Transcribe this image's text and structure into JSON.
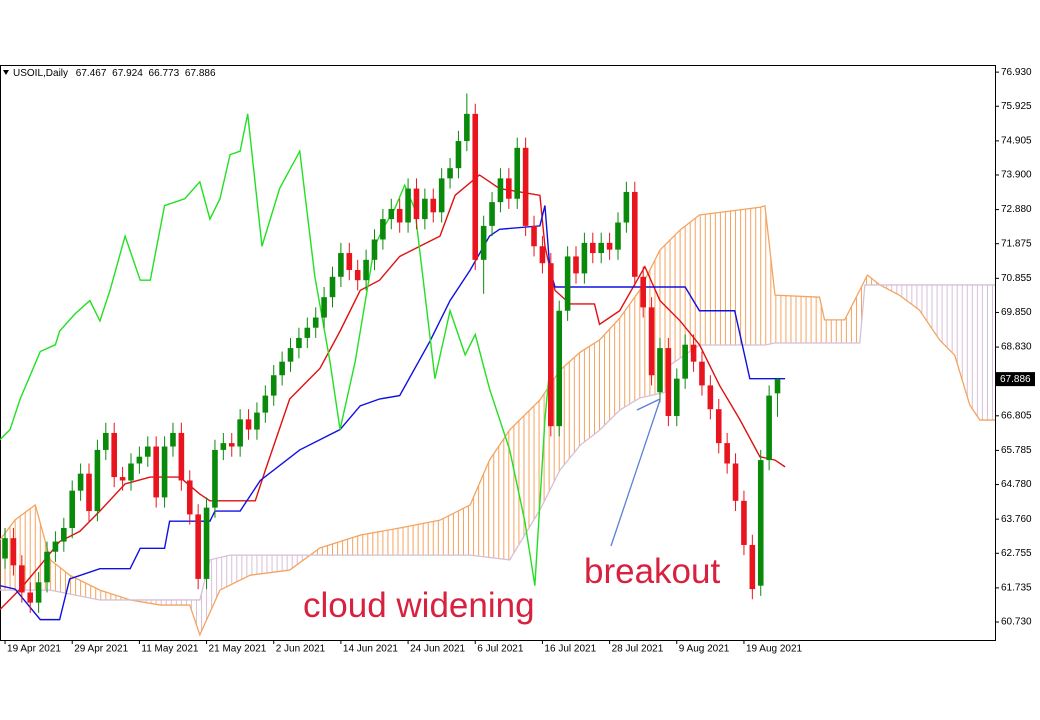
{
  "chart_data": {
    "type": "candlestick",
    "title": "USOIL,Daily",
    "up_color": "#0a8a0a",
    "down_color": "#e8141e",
    "grid": false,
    "xlim": [
      -0.6,
      117.9
    ],
    "xticks": [
      {
        "value": 0,
        "label": "19 Apr 2021"
      },
      {
        "value": 8,
        "label": "29 Apr 2021"
      },
      {
        "value": 16,
        "label": "11 May 2021"
      },
      {
        "value": 24,
        "label": "21 May 2021"
      },
      {
        "value": 32,
        "label": "2 Jun 2021"
      },
      {
        "value": 40,
        "label": "14 Jun 2021"
      },
      {
        "value": 48,
        "label": "24 Jun 2021"
      },
      {
        "value": 56,
        "label": "6 Jul 2021"
      },
      {
        "value": 64,
        "label": "16 Jul 2021"
      },
      {
        "value": 72,
        "label": "28 Jul 2021"
      },
      {
        "value": 80,
        "label": "9 Aug 2021"
      },
      {
        "value": 88,
        "label": "19 Aug 2021"
      }
    ],
    "ylim": [
      60.2,
      77.14
    ],
    "yticks": [
      {
        "value": 76.93,
        "label": "76.930"
      },
      75.925,
      74.905,
      {
        "value": 73.9,
        "label": "73.900"
      },
      {
        "value": 72.88,
        "label": "72.880"
      },
      71.875,
      70.855,
      {
        "value": 69.85,
        "label": "69.850"
      },
      {
        "value": 68.83,
        "label": "68.830"
      },
      66.805,
      65.785,
      {
        "value": 64.78,
        "label": "64.780"
      },
      {
        "value": 63.76,
        "label": "63.760"
      },
      62.755,
      61.735,
      {
        "value": 60.73,
        "label": "60.730"
      }
    ],
    "open": [
      62.6,
      63.2,
      62.4,
      61.6,
      61.3,
      61.9,
      62.8,
      63.1,
      63.5,
      64.6,
      65.1,
      64.0,
      65.8,
      66.3,
      65.0,
      64.9,
      65.4,
      65.6,
      65.9,
      64.4,
      65.9,
      66.3,
      64.9,
      63.9,
      62.0,
      64.1,
      65.8,
      66.0,
      65.9,
      66.7,
      66.4,
      66.9,
      67.4,
      68.0,
      68.4,
      68.8,
      69.1,
      69.4,
      69.7,
      70.3,
      70.9,
      71.6,
      71.1,
      70.8,
      71.4,
      72.0,
      72.6,
      72.9,
      72.5,
      73.5,
      72.6,
      73.2,
      72.8,
      73.8,
      74.1,
      74.9,
      75.7,
      71.4,
      72.4,
      73.1,
      73.8,
      73.2,
      74.7,
      72.4,
      71.8,
      71.3,
      66.5,
      69.9,
      71.5,
      71.0,
      71.9,
      71.6,
      71.9,
      71.7,
      72.5,
      73.4,
      70.9,
      70.0,
      67.5,
      68.8,
      66.8,
      67.9,
      68.9,
      68.4,
      67.7,
      67.0,
      66.0,
      65.4,
      64.3,
      63.0,
      61.8,
      65.5,
      67.467
    ],
    "high": [
      63.5,
      63.5,
      62.7,
      61.9,
      62.2,
      63.1,
      63.4,
      63.8,
      64.9,
      65.4,
      65.4,
      66.1,
      66.6,
      66.6,
      65.3,
      65.7,
      65.9,
      66.2,
      66.2,
      66.2,
      66.6,
      66.6,
      65.2,
      64.2,
      64.4,
      66.1,
      66.3,
      66.3,
      67.0,
      67.0,
      67.2,
      67.7,
      68.3,
      68.7,
      69.1,
      69.4,
      69.7,
      70.0,
      70.6,
      71.2,
      71.9,
      71.9,
      71.4,
      71.7,
      72.3,
      72.9,
      73.2,
      73.2,
      73.8,
      73.8,
      73.5,
      73.5,
      74.1,
      74.4,
      75.2,
      76.3,
      76.0,
      72.7,
      73.4,
      74.1,
      74.1,
      75.0,
      75.0,
      72.7,
      72.1,
      71.6,
      70.2,
      71.8,
      71.8,
      72.2,
      72.2,
      72.2,
      72.2,
      72.8,
      73.7,
      73.7,
      71.2,
      70.3,
      69.1,
      69.1,
      68.2,
      69.2,
      69.2,
      68.7,
      68.0,
      67.3,
      66.3,
      65.7,
      64.6,
      63.3,
      65.8,
      67.7,
      67.924
    ],
    "low": [
      62.3,
      62.1,
      61.3,
      61.0,
      61.0,
      61.6,
      62.5,
      62.8,
      63.2,
      64.3,
      63.7,
      63.7,
      65.5,
      64.7,
      64.6,
      64.6,
      65.1,
      65.3,
      64.1,
      64.1,
      65.6,
      64.6,
      63.6,
      61.7,
      61.7,
      63.8,
      65.5,
      65.6,
      65.6,
      66.1,
      66.1,
      66.6,
      67.1,
      67.7,
      68.1,
      68.5,
      68.8,
      69.1,
      69.4,
      70.0,
      70.6,
      70.8,
      70.5,
      70.5,
      71.1,
      71.7,
      72.3,
      72.2,
      72.2,
      72.3,
      72.3,
      72.5,
      72.5,
      73.5,
      73.8,
      74.6,
      71.1,
      70.4,
      72.1,
      72.8,
      72.9,
      72.9,
      72.1,
      71.5,
      71.0,
      66.2,
      66.2,
      69.6,
      70.7,
      70.7,
      71.3,
      71.3,
      71.4,
      71.4,
      72.2,
      70.6,
      69.7,
      67.7,
      67.2,
      66.5,
      66.5,
      67.6,
      68.1,
      67.4,
      66.7,
      65.7,
      65.1,
      64.0,
      62.7,
      61.4,
      61.5,
      65.2,
      66.773
    ],
    "close": [
      63.2,
      62.4,
      61.6,
      61.3,
      61.9,
      62.8,
      63.1,
      63.5,
      64.6,
      65.1,
      64.0,
      65.8,
      66.3,
      65.0,
      64.9,
      65.4,
      65.6,
      65.9,
      64.4,
      65.9,
      66.3,
      64.9,
      63.9,
      62.0,
      64.1,
      65.8,
      66.0,
      65.9,
      66.7,
      66.4,
      66.9,
      67.4,
      68.0,
      68.4,
      68.8,
      69.1,
      69.4,
      69.7,
      70.3,
      70.9,
      71.6,
      71.1,
      70.8,
      71.4,
      72.0,
      72.6,
      72.9,
      72.5,
      73.5,
      72.6,
      73.2,
      72.8,
      73.8,
      74.1,
      74.9,
      75.7,
      71.4,
      72.4,
      73.1,
      73.8,
      73.2,
      74.7,
      72.4,
      71.8,
      71.3,
      66.5,
      69.9,
      71.5,
      71.0,
      71.9,
      71.6,
      71.9,
      71.7,
      72.5,
      73.4,
      70.9,
      70.0,
      68.0,
      68.8,
      66.8,
      67.9,
      68.9,
      68.4,
      67.7,
      67.0,
      66.0,
      65.4,
      64.3,
      63.0,
      61.7,
      65.5,
      67.4,
      67.886
    ],
    "lines": [
      {
        "color": "#e01010",
        "x": [
          -0.6,
          1.8,
          4.2,
          6.5,
          8.9,
          11.3,
          14.3,
          17.3,
          20.8,
          23.2,
          24.4,
          29.8,
          31.0,
          33.9,
          37.5,
          39.9,
          42.3,
          44.6,
          47.0,
          49.4,
          51.8,
          53.6,
          56.5,
          58.9,
          63.7,
          64.3,
          65.5,
          67.3,
          70.2,
          70.8,
          73.2,
          76.2,
          78.0,
          80.4,
          82.7,
          85.1,
          87.5,
          89.9,
          91.7,
          92.9
        ],
        "values": [
          61.1,
          61.7,
          62.4,
          63.1,
          63.4,
          64.0,
          64.8,
          65.0,
          65.0,
          64.5,
          64.3,
          64.3,
          65.2,
          67.3,
          68.2,
          69.3,
          70.5,
          70.8,
          71.5,
          71.8,
          72.1,
          73.3,
          73.9,
          73.5,
          73.3,
          71.8,
          70.5,
          70.1,
          70.1,
          69.5,
          69.9,
          71.2,
          70.2,
          69.6,
          68.9,
          67.7,
          66.7,
          65.6,
          65.5,
          65.3
        ]
      },
      {
        "color": "#1010e0",
        "x": [
          -0.6,
          1.2,
          4.2,
          6.5,
          7.7,
          11.3,
          14.9,
          16.1,
          19.0,
          19.6,
          24.4,
          25.0,
          28.0,
          30.4,
          35.1,
          39.9,
          42.3,
          44.6,
          47.0,
          50.6,
          53.0,
          55.4,
          57.7,
          58.9,
          63.7,
          64.3,
          64.9,
          65.5,
          81.0,
          82.7,
          86.9,
          88.7,
          92.9
        ],
        "values": [
          61.8,
          61.7,
          60.8,
          60.8,
          62.0,
          62.3,
          62.3,
          62.9,
          62.9,
          63.7,
          63.7,
          64.0,
          64.0,
          64.9,
          65.8,
          66.4,
          67.1,
          67.3,
          67.4,
          69.0,
          70.2,
          71.1,
          72.1,
          72.3,
          72.4,
          73.0,
          71.1,
          70.6,
          70.6,
          69.9,
          69.9,
          67.9,
          67.9
        ]
      },
      {
        "color": "#22e022",
        "x": [
          -0.6,
          0.6,
          1.8,
          3.0,
          4.2,
          6.0,
          6.5,
          8.3,
          10.1,
          11.3,
          12.5,
          14.3,
          16.1,
          17.3,
          19.0,
          21.4,
          23.2,
          24.4,
          25.6,
          26.8,
          28.0,
          28.9,
          30.6,
          32.7,
          35.1,
          36.9,
          38.7,
          39.9,
          41.7,
          44.0,
          45.2,
          46.4,
          47.6,
          48.8,
          51.2,
          53.0,
          54.8,
          56.0,
          57.7,
          60.1,
          61.9,
          63.1,
          64.3,
          64.9
        ],
        "values": [
          66.1,
          66.4,
          67.3,
          68.0,
          68.7,
          68.9,
          69.3,
          69.8,
          70.2,
          69.6,
          70.5,
          72.1,
          70.8,
          70.8,
          73.0,
          73.2,
          73.7,
          72.6,
          73.2,
          74.5,
          74.6,
          75.7,
          71.8,
          73.5,
          74.6,
          70.9,
          68.4,
          66.4,
          68.4,
          71.8,
          72.4,
          72.9,
          73.6,
          72.9,
          67.9,
          69.9,
          68.6,
          69.2,
          67.6,
          65.8,
          63.7,
          61.8,
          66.7,
          68.3
        ]
      }
    ],
    "cloud": {
      "span_a": {
        "color": "#f4a460",
        "x": [
          -0.6,
          1.2,
          3.6,
          5.4,
          7.7,
          11.3,
          14.9,
          18.5,
          22.0,
          23.2,
          25.6,
          29.2,
          33.9,
          37.5,
          42.3,
          47.0,
          51.8,
          55.4,
          57.7,
          60.1,
          63.7,
          66.1,
          68.5,
          70.8,
          73.2,
          75.6,
          78.0,
          80.4,
          82.7,
          89.9,
          90.5,
          91.7,
          97.0,
          97.6,
          100.0,
          101.8,
          102.7,
          104.2,
          106.5,
          108.9,
          111.3,
          113.1,
          114.9,
          116.1,
          117.9
        ],
        "values": [
          63.15,
          63.74,
          64.18,
          62.56,
          62.11,
          61.67,
          61.38,
          61.23,
          61.23,
          60.35,
          61.67,
          62.11,
          62.26,
          62.91,
          63.29,
          63.5,
          63.73,
          64.18,
          65.5,
          66.39,
          67.27,
          68.15,
          68.68,
          69.04,
          69.68,
          70.51,
          71.69,
          72.28,
          72.72,
          72.95,
          72.99,
          70.36,
          70.3,
          69.63,
          69.63,
          70.51,
          70.95,
          70.66,
          70.36,
          69.92,
          69.04,
          68.59,
          67.12,
          66.68,
          66.68
        ]
      },
      "span_b": {
        "color": "#d8bfd8",
        "x": [
          -0.6,
          5.4,
          11.3,
          23.2,
          24.4,
          26.8,
          55.4,
          60.1,
          63.7,
          66.1,
          68.5,
          70.8,
          73.2,
          75.6,
          78.6,
          79.2,
          82.7,
          90.5,
          91.7,
          101.8,
          102.4,
          117.9
        ],
        "values": [
          61.67,
          61.67,
          61.38,
          61.38,
          62.56,
          62.7,
          62.7,
          62.56,
          64.03,
          65.21,
          65.94,
          66.38,
          66.97,
          67.33,
          67.5,
          68.3,
          68.89,
          68.89,
          68.95,
          68.95,
          70.66,
          70.66
        ]
      }
    },
    "annotations": [
      "cloud widening",
      "breakout"
    ]
  }
}
